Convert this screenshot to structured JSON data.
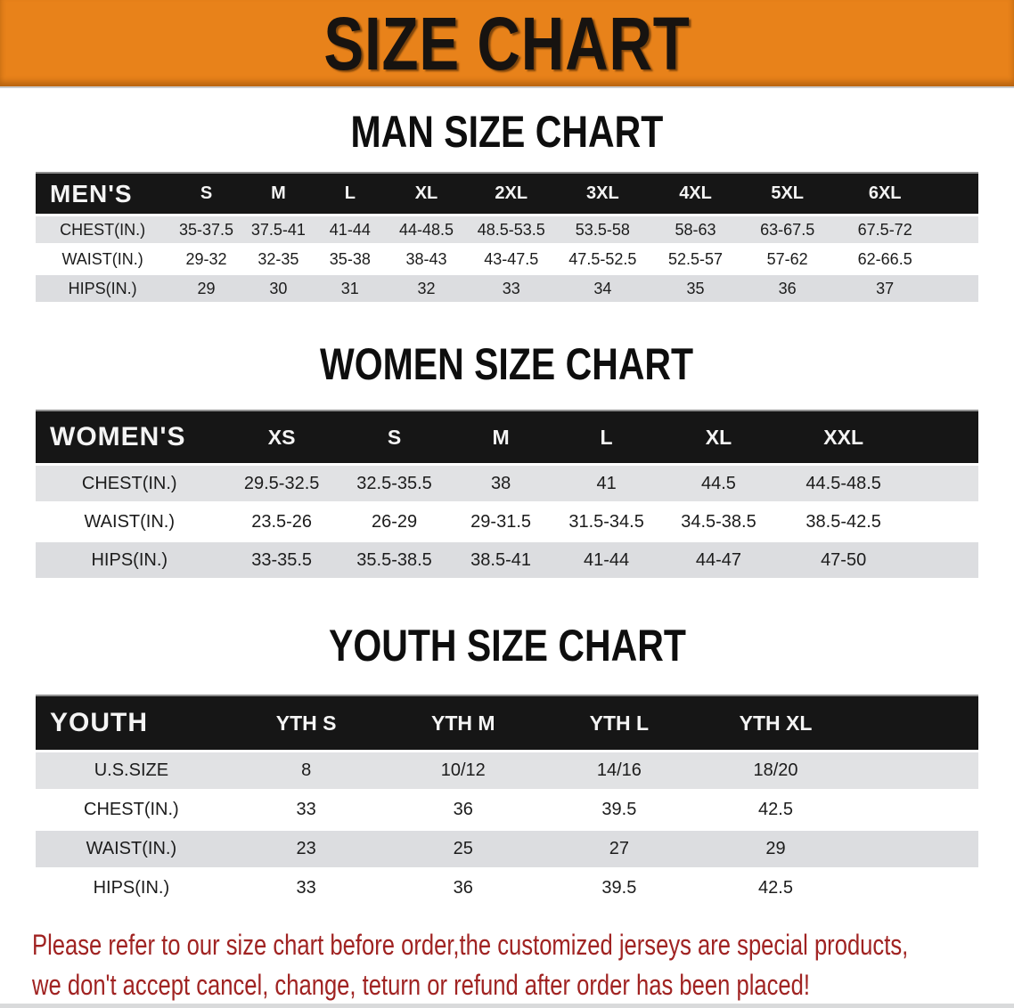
{
  "banner": {
    "title": "SIZE CHART"
  },
  "colors": {
    "banner-orange": "#e8821a",
    "header-black": "#161616",
    "row-gray": "#e1e2e4",
    "footer-red": "#a02322"
  },
  "sections": {
    "men": {
      "heading": "MAN SIZE CHART"
    },
    "women": {
      "heading": "WOMEN SIZE CHART"
    },
    "youth": {
      "heading": "YOUTH SIZE CHART"
    }
  },
  "tables": {
    "men": {
      "header_label": "MEN'S",
      "sizes": [
        "S",
        "M",
        "L",
        "XL",
        "2XL",
        "3XL",
        "4XL",
        "5XL",
        "6XL"
      ],
      "rows": [
        {
          "label": "CHEST(IN.)",
          "values": [
            "35-37.5",
            "37.5-41",
            "41-44",
            "44-48.5",
            "48.5-53.5",
            "53.5-58",
            "58-63",
            "63-67.5",
            "67.5-72"
          ]
        },
        {
          "label": "WAIST(IN.)",
          "values": [
            "29-32",
            "32-35",
            "35-38",
            "38-43",
            "43-47.5",
            "47.5-52.5",
            "52.5-57",
            "57-62",
            "62-66.5"
          ]
        },
        {
          "label": "HIPS(IN.)",
          "values": [
            "29",
            "30",
            "31",
            "32",
            "33",
            "34",
            "35",
            "36",
            "37"
          ]
        }
      ]
    },
    "women": {
      "header_label": "WOMEN'S",
      "sizes": [
        "XS",
        "S",
        "M",
        "L",
        "XL",
        "XXL"
      ],
      "rows": [
        {
          "label": "CHEST(IN.)",
          "values": [
            "29.5-32.5",
            "32.5-35.5",
            "38",
            "41",
            "44.5",
            "44.5-48.5"
          ]
        },
        {
          "label": "WAIST(IN.)",
          "values": [
            "23.5-26",
            "26-29",
            "29-31.5",
            "31.5-34.5",
            "34.5-38.5",
            "38.5-42.5"
          ]
        },
        {
          "label": "HIPS(IN.)",
          "values": [
            "33-35.5",
            "35.5-38.5",
            "38.5-41",
            "41-44",
            "44-47",
            "47-50"
          ]
        }
      ]
    },
    "youth": {
      "header_label": "YOUTH",
      "sizes": [
        "YTH S",
        "YTH M",
        "YTH L",
        "YTH XL"
      ],
      "rows": [
        {
          "label": "U.S.SIZE",
          "values": [
            "8",
            "10/12",
            "14/16",
            "18/20"
          ]
        },
        {
          "label": "CHEST(IN.)",
          "values": [
            "33",
            "36",
            "39.5",
            "42.5"
          ]
        },
        {
          "label": "WAIST(IN.)",
          "values": [
            "23",
            "25",
            "27",
            "29"
          ]
        },
        {
          "label": "HIPS(IN.)",
          "values": [
            "33",
            "36",
            "39.5",
            "42.5"
          ]
        }
      ]
    }
  },
  "footer": {
    "line1": "Please refer to our size chart before order,the customized jerseys are special products,",
    "line2": "we don't accept cancel, change, teturn or refund after order has been placed!"
  }
}
